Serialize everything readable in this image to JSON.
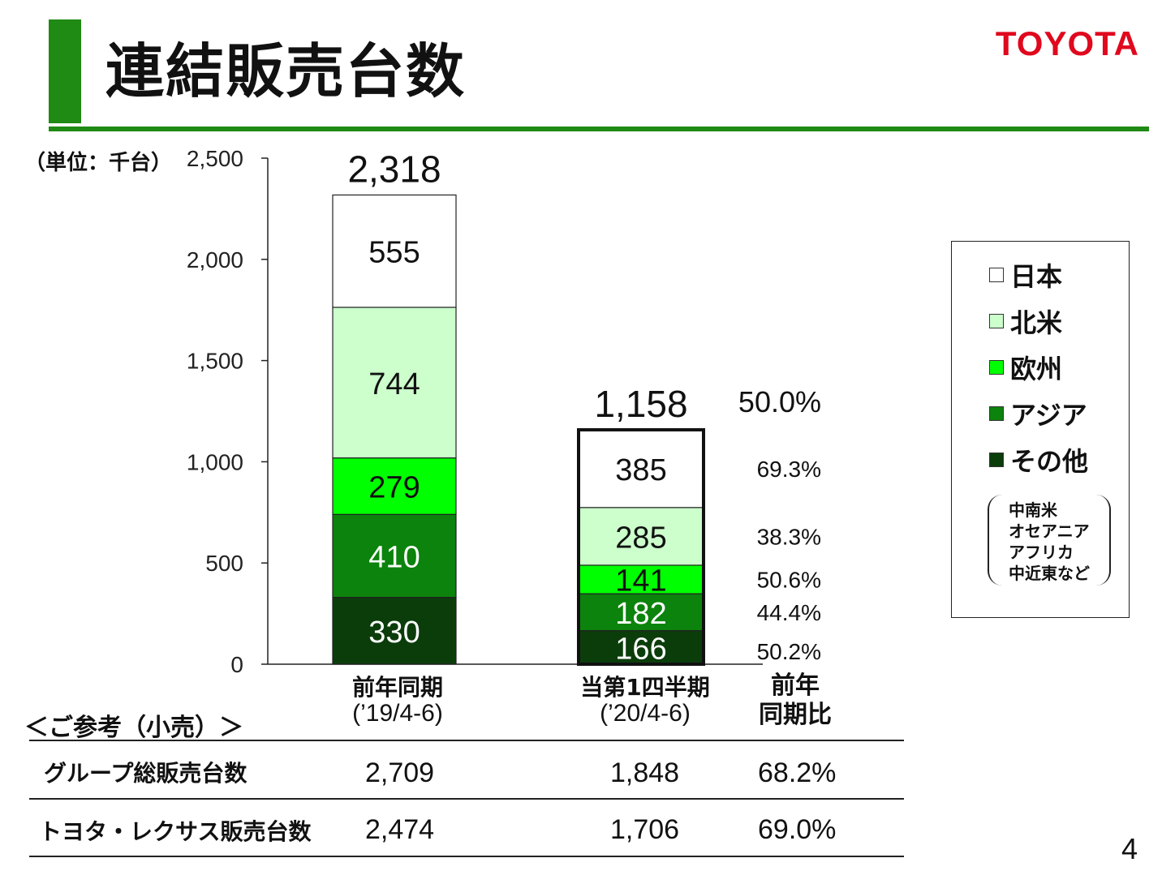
{
  "title": "連結販売台数",
  "logo": "TOYOTA",
  "unit": "（単位：千台）",
  "legend_note": [
    "中南米",
    "オセアニア",
    "アフリカ",
    "中近東など"
  ],
  "ratio_label": [
    "前年",
    "同期比"
  ],
  "chart_data": {
    "type": "bar",
    "stacked": true,
    "categories": [
      "前年同期",
      "当第1四半期"
    ],
    "category_periods": [
      "(’19/4-6)",
      "(’20/4-6)"
    ],
    "yticks": [
      "0",
      "500",
      "1,000",
      "1,500",
      "2,000",
      "2,500"
    ],
    "ylim": [
      0,
      2500
    ],
    "totals": [
      2318,
      1158
    ],
    "total_labels": [
      "2,318",
      "1,158"
    ],
    "series": [
      {
        "name": "その他",
        "color": "#0b3d0b",
        "text_color": "#ffffff",
        "values": [
          330,
          166
        ],
        "ratio": "50.2%"
      },
      {
        "name": "アジア",
        "color": "#0c830c",
        "text_color": "#ffffff",
        "values": [
          410,
          182
        ],
        "ratio": "44.4%"
      },
      {
        "name": "欧州",
        "color": "#00ff00",
        "text_color": "#111111",
        "values": [
          279,
          141
        ],
        "ratio": "50.6%"
      },
      {
        "name": "北米",
        "color": "#ccffcc",
        "text_color": "#111111",
        "values": [
          744,
          285
        ],
        "ratio": "38.3%"
      },
      {
        "name": "日本",
        "color": "#ffffff",
        "text_color": "#111111",
        "values": [
          555,
          385
        ],
        "ratio": "69.3%"
      }
    ],
    "total_ratio": "50.0%",
    "legend_position": "right"
  },
  "reference": {
    "title": "＜ご参考（小売）＞",
    "rows": [
      {
        "label": "グループ総販売台数",
        "prev": "2,709",
        "curr": "1,848",
        "ratio": "68.2%"
      },
      {
        "label": "トヨタ・レクサス販売台数",
        "prev": "2,474",
        "curr": "1,706",
        "ratio": "69.0%"
      }
    ]
  },
  "page_number": "4"
}
